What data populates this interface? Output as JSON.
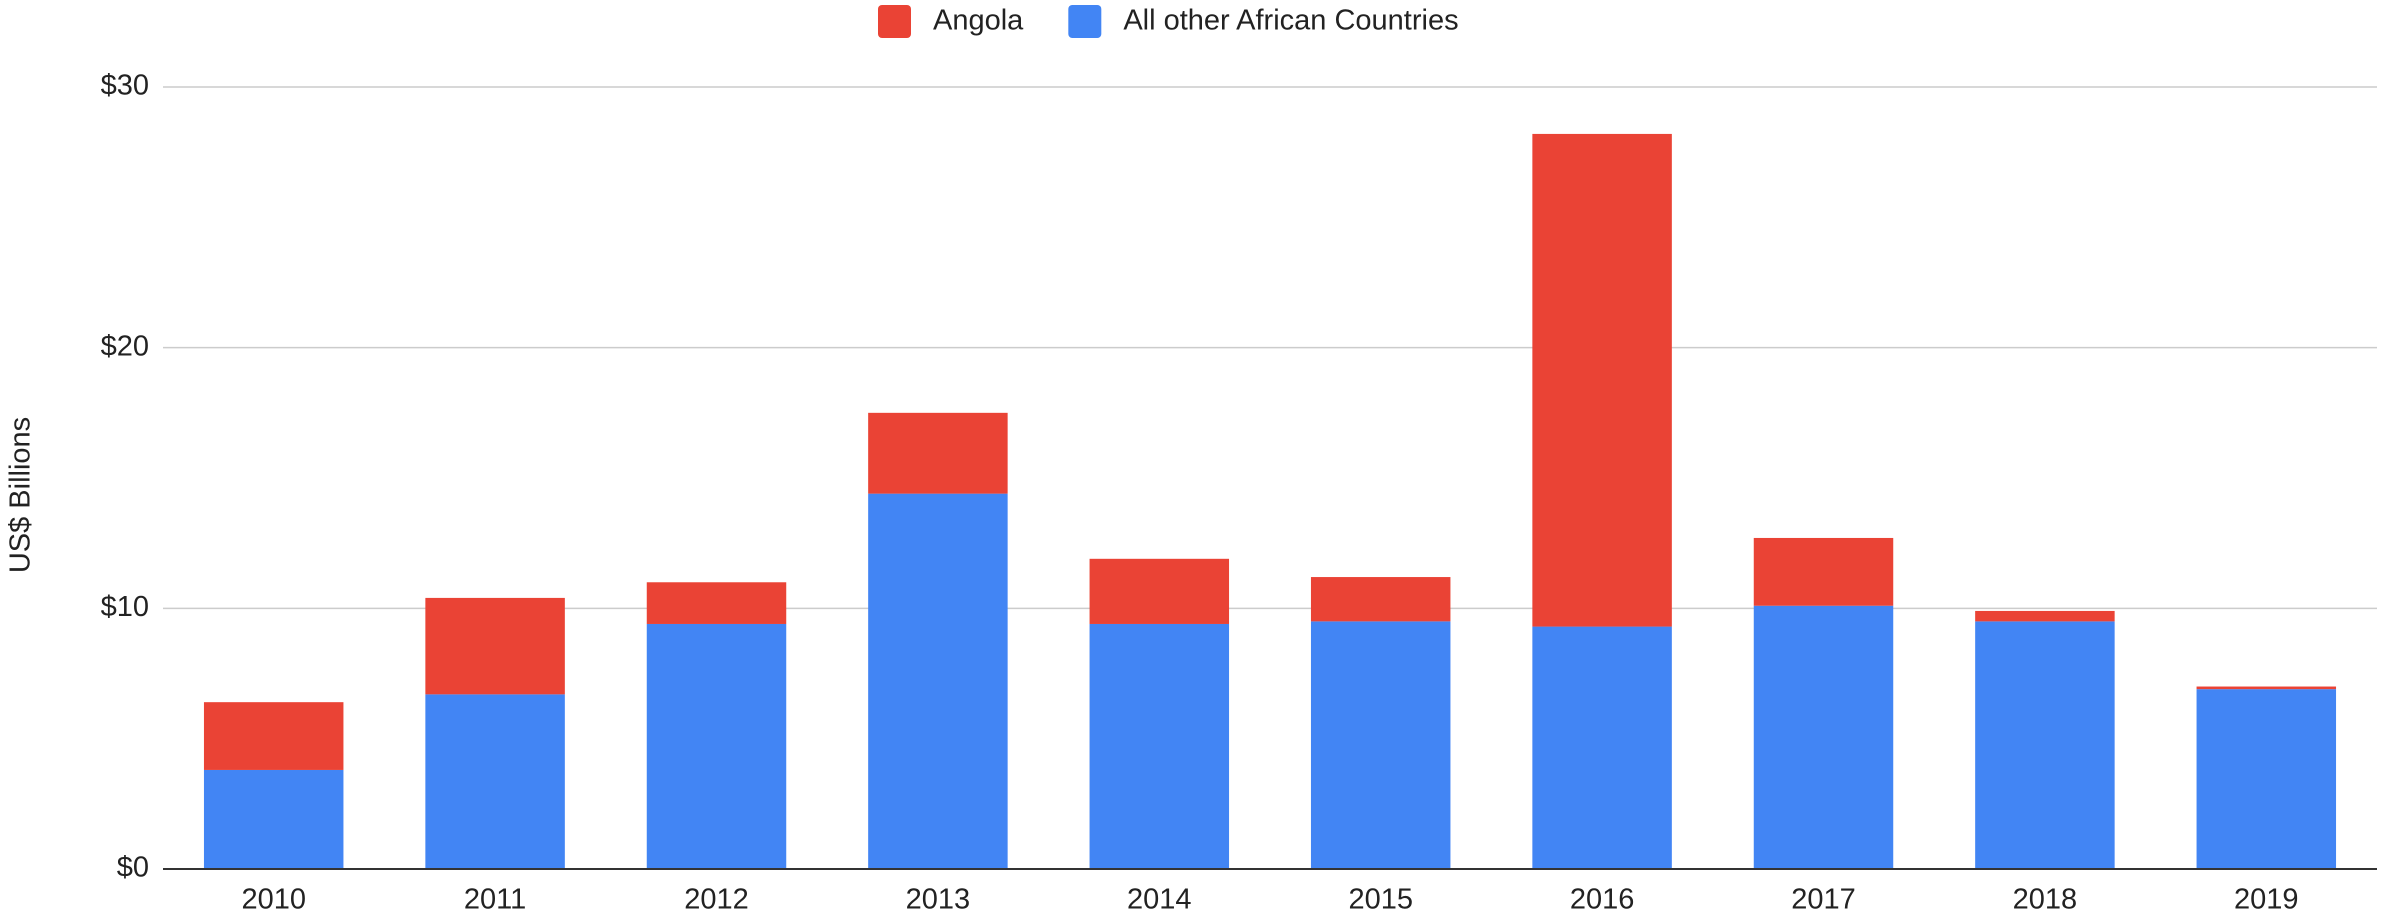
{
  "chart_data": {
    "type": "stacked_bar",
    "y_label": "US$ Billions",
    "categories": [
      "2010",
      "2011",
      "2012",
      "2013",
      "2014",
      "2015",
      "2016",
      "2017",
      "2018",
      "2019"
    ],
    "series": [
      {
        "name": "Angola",
        "color": "#ea4335",
        "values": [
          2.6,
          3.7,
          1.6,
          3.1,
          2.5,
          1.7,
          18.9,
          2.6,
          0.4,
          0.1
        ]
      },
      {
        "name": "All other African Countries",
        "color": "#4285f4",
        "values": [
          3.8,
          6.7,
          9.4,
          14.4,
          9.4,
          9.5,
          9.3,
          10.1,
          9.5,
          6.9
        ]
      }
    ],
    "ylim": [
      0,
      30
    ],
    "yticks": [
      {
        "value": 0,
        "label": "$0"
      },
      {
        "value": 10,
        "label": "$10"
      },
      {
        "value": 20,
        "label": "$20"
      },
      {
        "value": 30,
        "label": "$30"
      }
    ],
    "grid": true,
    "legend": "top"
  }
}
